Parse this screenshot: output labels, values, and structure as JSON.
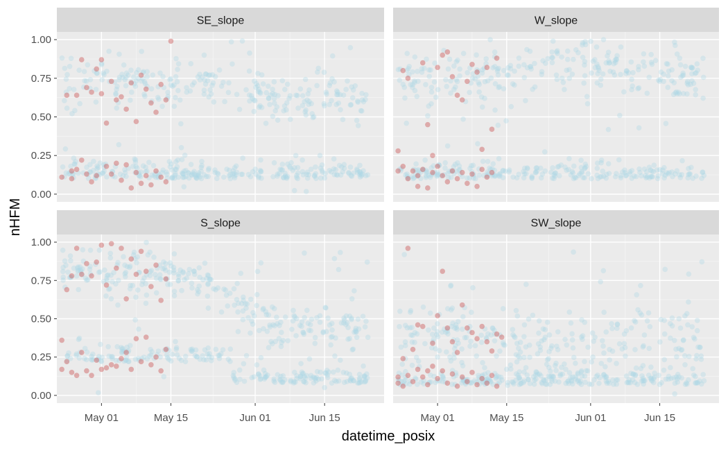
{
  "chart_data": {
    "type": "scatter",
    "xlabel": "datetime_posix",
    "ylabel": "nHFM",
    "x_range": [
      "2024-04-22",
      "2024-06-27"
    ],
    "ylim": [
      -0.05,
      1.05
    ],
    "x_ticks": [
      {
        "date": "2024-05-01",
        "label": "May 01"
      },
      {
        "date": "2024-05-15",
        "label": "May 15"
      },
      {
        "date": "2024-06-01",
        "label": "Jun 01"
      },
      {
        "date": "2024-06-15",
        "label": "Jun 15"
      }
    ],
    "y_ticks": [
      {
        "value": 0.0,
        "label": "0.00"
      },
      {
        "value": 0.25,
        "label": "0.25"
      },
      {
        "value": 0.5,
        "label": "0.50"
      },
      {
        "value": 0.75,
        "label": "0.75"
      },
      {
        "value": 1.0,
        "label": "1.00"
      }
    ],
    "grid": true,
    "colors": {
      "panel_bg": "#ebebeb",
      "strip_bg": "#d9d9d9",
      "grid": "#ffffff",
      "point_blue": "#add8e6",
      "point_red": "#cd5c5c"
    },
    "panels": [
      {
        "strip": "SE_slope",
        "red_points": [
          [
            "2024-04-23",
            0.11
          ],
          [
            "2024-04-24",
            0.64
          ],
          [
            "2024-04-25",
            0.15
          ],
          [
            "2024-04-25",
            0.1
          ],
          [
            "2024-04-26",
            0.64
          ],
          [
            "2024-04-26",
            0.16
          ],
          [
            "2024-04-27",
            0.87
          ],
          [
            "2024-04-27",
            0.22
          ],
          [
            "2024-04-28",
            0.69
          ],
          [
            "2024-04-28",
            0.13
          ],
          [
            "2024-04-29",
            0.66
          ],
          [
            "2024-04-29",
            0.08
          ],
          [
            "2024-04-30",
            0.81
          ],
          [
            "2024-04-30",
            0.12
          ],
          [
            "2024-05-01",
            0.87
          ],
          [
            "2024-05-01",
            0.65
          ],
          [
            "2024-05-02",
            0.46
          ],
          [
            "2024-05-02",
            0.18
          ],
          [
            "2024-05-03",
            0.73
          ],
          [
            "2024-05-03",
            0.13
          ],
          [
            "2024-05-04",
            0.61
          ],
          [
            "2024-05-04",
            0.2
          ],
          [
            "2024-05-05",
            0.63
          ],
          [
            "2024-05-05",
            0.09
          ],
          [
            "2024-05-06",
            0.55
          ],
          [
            "2024-05-06",
            0.19
          ],
          [
            "2024-05-07",
            0.72
          ],
          [
            "2024-05-07",
            0.04
          ],
          [
            "2024-05-08",
            0.47
          ],
          [
            "2024-05-08",
            0.14
          ],
          [
            "2024-05-09",
            0.77
          ],
          [
            "2024-05-09",
            0.07
          ],
          [
            "2024-05-10",
            0.68
          ],
          [
            "2024-05-10",
            0.12
          ],
          [
            "2024-05-11",
            0.59
          ],
          [
            "2024-05-11",
            0.06
          ],
          [
            "2024-05-12",
            0.53
          ],
          [
            "2024-05-12",
            0.15
          ],
          [
            "2024-05-13",
            0.71
          ],
          [
            "2024-05-13",
            0.11
          ],
          [
            "2024-05-14",
            0.61
          ],
          [
            "2024-05-14",
            0.08
          ],
          [
            "2024-05-15",
            0.99
          ]
        ]
      },
      {
        "strip": "W_slope",
        "red_points": [
          [
            "2024-04-23",
            0.28
          ],
          [
            "2024-04-23",
            0.15
          ],
          [
            "2024-04-24",
            0.8
          ],
          [
            "2024-04-24",
            0.18
          ],
          [
            "2024-04-25",
            0.75
          ],
          [
            "2024-04-25",
            0.1
          ],
          [
            "2024-04-26",
            0.15
          ],
          [
            "2024-04-27",
            0.05
          ],
          [
            "2024-04-27",
            0.12
          ],
          [
            "2024-04-28",
            0.85
          ],
          [
            "2024-04-28",
            0.16
          ],
          [
            "2024-04-29",
            0.45
          ],
          [
            "2024-04-29",
            0.04
          ],
          [
            "2024-04-30",
            0.25
          ],
          [
            "2024-04-30",
            0.14
          ],
          [
            "2024-05-01",
            0.82
          ],
          [
            "2024-05-01",
            0.18
          ],
          [
            "2024-05-02",
            0.9
          ],
          [
            "2024-05-02",
            0.12
          ],
          [
            "2024-05-03",
            0.92
          ],
          [
            "2024-05-03",
            0.08
          ],
          [
            "2024-05-04",
            0.76
          ],
          [
            "2024-05-04",
            0.15
          ],
          [
            "2024-05-05",
            0.64
          ],
          [
            "2024-05-05",
            0.1
          ],
          [
            "2024-05-06",
            0.61
          ],
          [
            "2024-05-06",
            0.14
          ],
          [
            "2024-05-07",
            0.73
          ],
          [
            "2024-05-07",
            0.07
          ],
          [
            "2024-05-08",
            0.84
          ],
          [
            "2024-05-08",
            0.13
          ],
          [
            "2024-05-09",
            0.79
          ],
          [
            "2024-05-09",
            0.05
          ],
          [
            "2024-05-10",
            0.29
          ],
          [
            "2024-05-10",
            0.16
          ],
          [
            "2024-05-11",
            0.82
          ],
          [
            "2024-05-11",
            0.11
          ],
          [
            "2024-05-12",
            0.42
          ],
          [
            "2024-05-12",
            0.14
          ],
          [
            "2024-05-13",
            0.88
          ]
        ]
      },
      {
        "strip": "S_slope",
        "red_points": [
          [
            "2024-04-23",
            0.17
          ],
          [
            "2024-04-23",
            0.36
          ],
          [
            "2024-04-24",
            0.69
          ],
          [
            "2024-04-24",
            0.22
          ],
          [
            "2024-04-25",
            0.78
          ],
          [
            "2024-04-25",
            0.15
          ],
          [
            "2024-04-26",
            0.96
          ],
          [
            "2024-04-26",
            0.13
          ],
          [
            "2024-04-27",
            0.79
          ],
          [
            "2024-04-27",
            0.28
          ],
          [
            "2024-04-28",
            0.86
          ],
          [
            "2024-04-28",
            0.16
          ],
          [
            "2024-04-29",
            0.78
          ],
          [
            "2024-04-29",
            0.13
          ],
          [
            "2024-04-30",
            0.87
          ],
          [
            "2024-04-30",
            0.23
          ],
          [
            "2024-05-01",
            0.98
          ],
          [
            "2024-05-01",
            0.17
          ],
          [
            "2024-05-02",
            0.72
          ],
          [
            "2024-05-02",
            0.18
          ],
          [
            "2024-05-03",
            0.99
          ],
          [
            "2024-05-03",
            0.2
          ],
          [
            "2024-05-04",
            0.83
          ],
          [
            "2024-05-04",
            0.19
          ],
          [
            "2024-05-05",
            0.96
          ],
          [
            "2024-05-05",
            0.24
          ],
          [
            "2024-05-06",
            0.63
          ],
          [
            "2024-05-06",
            0.28
          ],
          [
            "2024-05-07",
            0.89
          ],
          [
            "2024-05-07",
            0.17
          ],
          [
            "2024-05-08",
            0.79
          ],
          [
            "2024-05-08",
            0.37
          ],
          [
            "2024-05-09",
            0.94
          ],
          [
            "2024-05-09",
            0.22
          ],
          [
            "2024-05-10",
            0.81
          ],
          [
            "2024-05-10",
            0.38
          ],
          [
            "2024-05-11",
            0.71
          ],
          [
            "2024-05-11",
            0.2
          ],
          [
            "2024-05-12",
            0.85
          ],
          [
            "2024-05-12",
            0.25
          ],
          [
            "2024-05-13",
            0.62
          ],
          [
            "2024-05-13",
            0.16
          ],
          [
            "2024-05-14",
            0.76
          ],
          [
            "2024-05-14",
            0.3
          ]
        ]
      },
      {
        "strip": "SW_slope",
        "red_points": [
          [
            "2024-04-23",
            0.12
          ],
          [
            "2024-04-23",
            0.08
          ],
          [
            "2024-04-24",
            0.24
          ],
          [
            "2024-04-24",
            0.06
          ],
          [
            "2024-04-25",
            0.96
          ],
          [
            "2024-04-25",
            0.13
          ],
          [
            "2024-04-26",
            0.3
          ],
          [
            "2024-04-26",
            0.09
          ],
          [
            "2024-04-27",
            0.46
          ],
          [
            "2024-04-27",
            0.17
          ],
          [
            "2024-04-28",
            0.45
          ],
          [
            "2024-04-28",
            0.12
          ],
          [
            "2024-04-29",
            0.16
          ],
          [
            "2024-04-29",
            0.07
          ],
          [
            "2024-04-30",
            0.34
          ],
          [
            "2024-04-30",
            0.19
          ],
          [
            "2024-05-01",
            0.52
          ],
          [
            "2024-05-01",
            0.11
          ],
          [
            "2024-05-02",
            0.81
          ],
          [
            "2024-05-02",
            0.16
          ],
          [
            "2024-05-03",
            0.44
          ],
          [
            "2024-05-03",
            0.08
          ],
          [
            "2024-05-04",
            0.35
          ],
          [
            "2024-05-04",
            0.14
          ],
          [
            "2024-05-05",
            0.28
          ],
          [
            "2024-05-05",
            0.06
          ],
          [
            "2024-05-06",
            0.59
          ],
          [
            "2024-05-06",
            0.12
          ],
          [
            "2024-05-07",
            0.44
          ],
          [
            "2024-05-07",
            0.09
          ],
          [
            "2024-05-08",
            0.41
          ],
          [
            "2024-05-08",
            0.15
          ],
          [
            "2024-05-09",
            0.37
          ],
          [
            "2024-05-09",
            0.07
          ],
          [
            "2024-05-10",
            0.45
          ],
          [
            "2024-05-10",
            0.11
          ],
          [
            "2024-05-11",
            0.35
          ],
          [
            "2024-05-11",
            0.08
          ],
          [
            "2024-05-12",
            0.29
          ],
          [
            "2024-05-12",
            0.13
          ],
          [
            "2024-05-13",
            0.4
          ],
          [
            "2024-05-13",
            0.06
          ],
          [
            "2024-05-14",
            0.38
          ]
        ]
      }
    ]
  }
}
